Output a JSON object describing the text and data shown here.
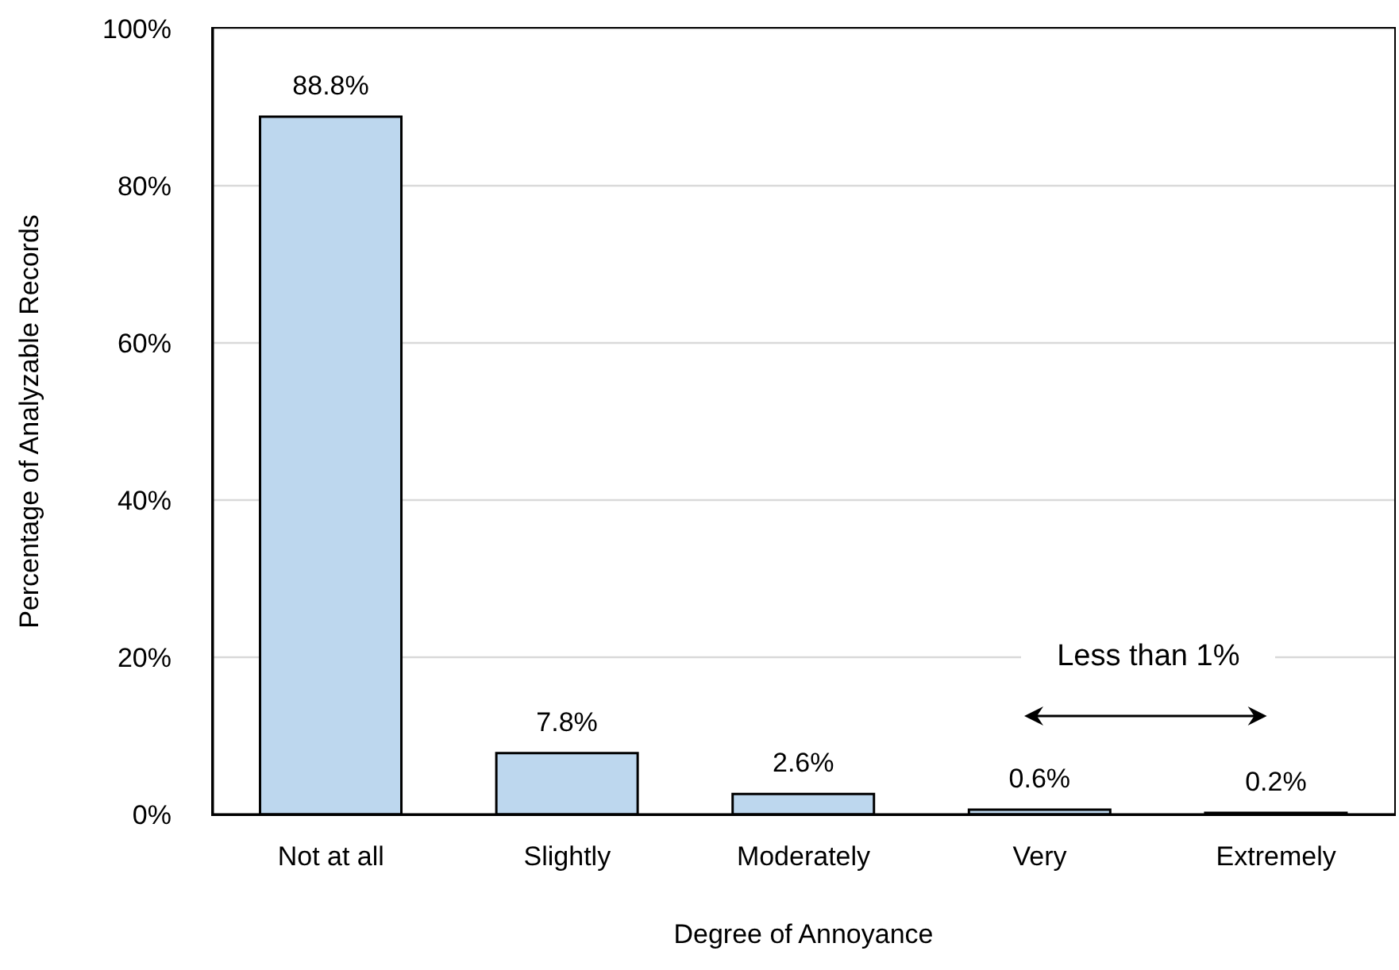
{
  "chart_data": {
    "type": "bar",
    "xlabel": "Degree of Annoyance",
    "ylabel": "Percentage of Analyzable Records",
    "categories": [
      "Not at all",
      "Slightly",
      "Moderately",
      "Very",
      "Extremely"
    ],
    "values": [
      88.8,
      7.8,
      2.6,
      0.6,
      0.2
    ],
    "value_labels": [
      "88.8%",
      "7.8%",
      "2.6%",
      "0.6%",
      "0.2%"
    ],
    "color": "#bdd7ee",
    "ylim": [
      0,
      100
    ],
    "yticks": [
      {
        "value": 0,
        "label": "0%"
      },
      {
        "value": 20,
        "label": "20%"
      },
      {
        "value": 40,
        "label": "40%"
      },
      {
        "value": 60,
        "label": "60%"
      },
      {
        "value": 80,
        "label": "80%"
      },
      {
        "value": 100,
        "label": "100%"
      }
    ],
    "grid": "y",
    "annotations": [
      "Less than 1%"
    ]
  }
}
